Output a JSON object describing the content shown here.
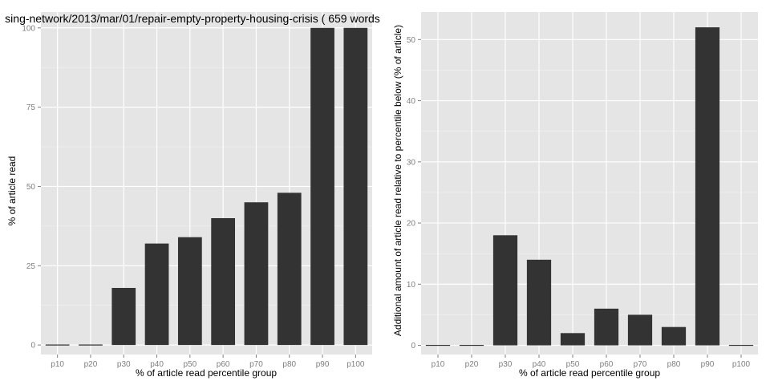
{
  "colors": {
    "panel_bg": "#e5e5e5",
    "grid_major": "#ffffff",
    "grid_minor": "#f2f2f2",
    "bar_fill": "#333333",
    "tick_text": "#7f7f7f",
    "page_bg": "#ffffff"
  },
  "chart_data": [
    {
      "type": "bar",
      "title": "sing-network/2013/mar/01/repair-empty-property-housing-crisis ( 659 words",
      "xlabel": "% of article read percentile group",
      "ylabel": "% of article read",
      "categories": [
        "p10",
        "p20",
        "p30",
        "p40",
        "p50",
        "p60",
        "p70",
        "p80",
        "p90",
        "p100"
      ],
      "values": [
        0,
        0,
        18,
        32,
        34,
        40,
        45,
        48,
        100,
        100
      ],
      "ylim": [
        -3,
        105
      ],
      "yticks": [
        0,
        25,
        50,
        75,
        100
      ],
      "grid": true,
      "legend": "none"
    },
    {
      "type": "bar",
      "title": "",
      "xlabel": "% of article read percentile group",
      "ylabel": "Additional amount of article read relative to percentile below (% of article)",
      "categories": [
        "p10",
        "p20",
        "p30",
        "p40",
        "p50",
        "p60",
        "p70",
        "p80",
        "p90",
        "p100"
      ],
      "values": [
        0,
        0,
        18,
        14,
        2,
        6,
        5,
        3,
        52,
        0
      ],
      "ylim": [
        -1.5,
        54.5
      ],
      "yticks": [
        0,
        10,
        20,
        30,
        40,
        50
      ],
      "grid": true,
      "legend": "none"
    }
  ]
}
